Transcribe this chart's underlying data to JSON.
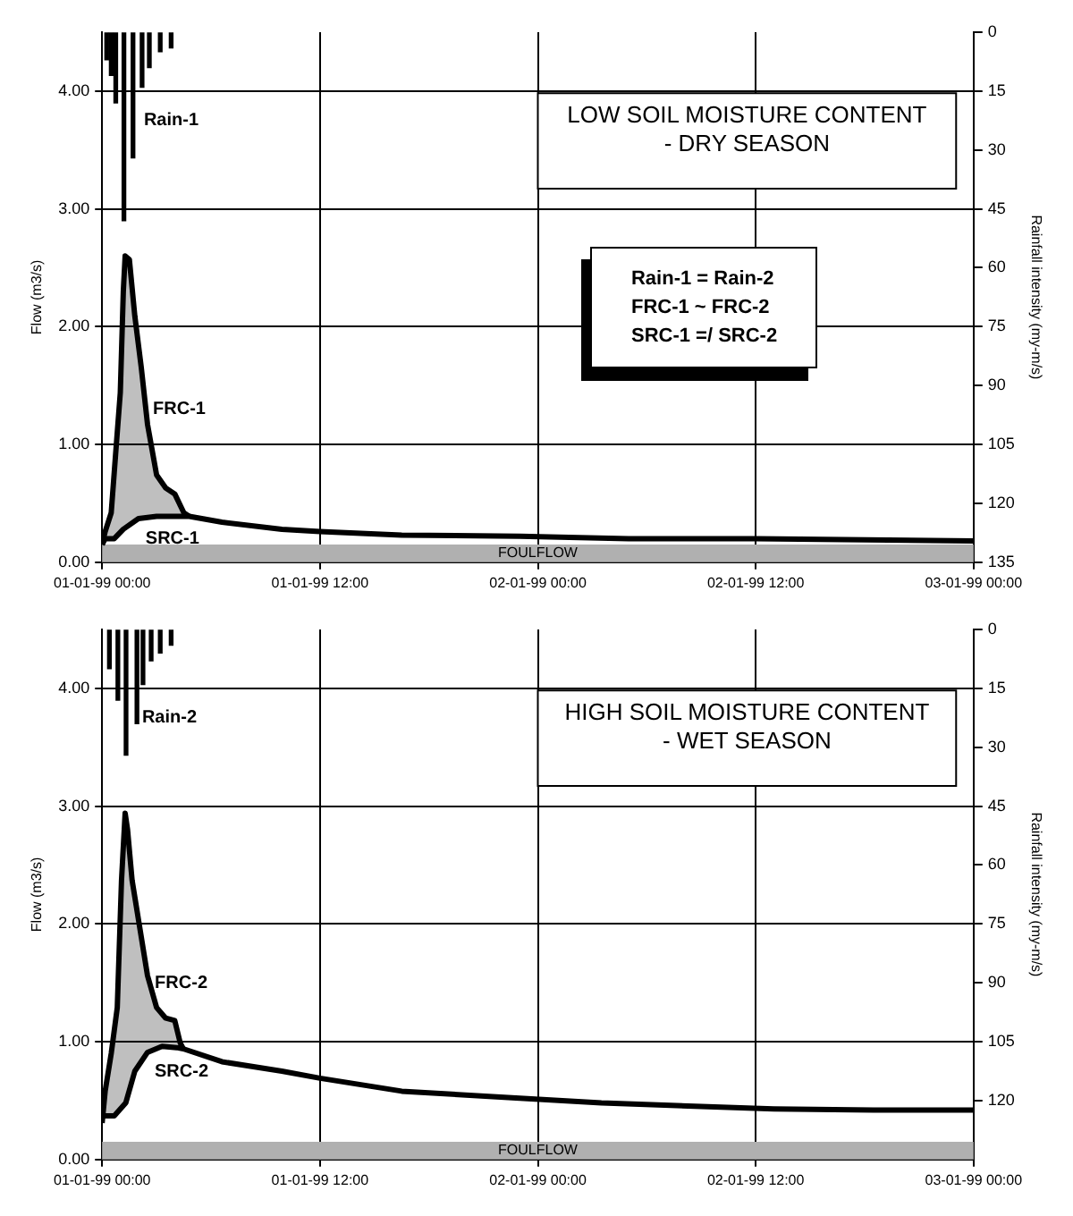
{
  "chart_data": [
    {
      "type": "line",
      "title": "LOW SOIL MOISTURE CONTENT",
      "subtitle": "- DRY SEASON",
      "ylabel": "Flow (m3/s)",
      "y2label": "Rainfall intensity (my-m/s)",
      "xlim": [
        "1999-01-01T00:00",
        "1999-01-03T00:00"
      ],
      "xticks": [
        {
          "value": "1999-01-01T00:00",
          "label": "01-01-99 00:00"
        },
        {
          "value": "1999-01-01T12:00",
          "label": "01-01-99 12:00"
        },
        {
          "value": "1999-01-02T00:00",
          "label": "02-01-99 00:00"
        },
        {
          "value": "1999-01-02T12:00",
          "label": "02-01-99 12:00"
        },
        {
          "value": "1999-01-03T00:00",
          "label": "03-01-99 00:00"
        }
      ],
      "ylim": [
        0,
        4.5
      ],
      "yticks": [
        {
          "value": 0,
          "label": "0.00"
        },
        {
          "value": 1,
          "label": "1.00"
        },
        {
          "value": 2,
          "label": "2.00"
        },
        {
          "value": 3,
          "label": "3.00"
        },
        {
          "value": 4,
          "label": "4.00"
        }
      ],
      "y2lim": [
        135,
        0
      ],
      "y2ticks": [
        0,
        15,
        30,
        45,
        60,
        75,
        90,
        105,
        120,
        135
      ],
      "grid": true,
      "legend": false,
      "marker": "none",
      "line_style": "solid",
      "bands": [
        {
          "axis": "y",
          "from": 0,
          "to": 0.15,
          "label": "FOULFLOW",
          "color": "#b0b0b0"
        }
      ],
      "annotations": [
        {
          "text": "Rain-1",
          "x": "1999-01-01T02:18",
          "y": 3.75
        },
        {
          "text": "FRC-1",
          "x": "1999-01-01T02:48",
          "y": 1.3
        },
        "Rain-1 = Rain-2",
        "FRC-1 ~ FRC-2",
        "SRC-1 =/ SRC-2"
      ],
      "series": [
        {
          "type": "bar",
          "axis": "y2",
          "color": "#000000",
          "x": [
            "1999-01-01T00:15",
            "1999-01-01T00:30",
            "1999-01-01T00:45",
            "1999-01-01T01:12",
            "1999-01-01T01:42",
            "1999-01-01T02:12",
            "1999-01-01T02:36",
            "1999-01-01T03:12",
            "1999-01-01T03:48"
          ],
          "values": [
            7,
            11,
            18,
            48,
            32,
            14,
            9,
            5,
            4
          ]
        },
        {
          "type": "area",
          "color": "#000000",
          "x": [
            "1999-01-01T00:00",
            "1999-01-01T00:10",
            "1999-01-01T00:30",
            "1999-01-01T00:44",
            "1999-01-01T01:00",
            "1999-01-01T01:10",
            "1999-01-01T01:16",
            "1999-01-01T01:30",
            "1999-01-01T01:48",
            "1999-01-01T02:09",
            "1999-01-01T02:30",
            "1999-01-01T03:00",
            "1999-01-01T03:30",
            "1999-01-01T04:00",
            "1999-01-01T04:30",
            "1999-01-01T04:48"
          ],
          "values": [
            0.15,
            0.26,
            0.42,
            0.9,
            1.44,
            2.3,
            2.6,
            2.57,
            2.09,
            1.66,
            1.17,
            0.74,
            0.63,
            0.58,
            0.42,
            0.39
          ]
        },
        {
          "type": "line",
          "name": "SRC-1",
          "color": "#000000",
          "x": [
            "1999-01-01T00:00",
            "1999-01-01T00:10",
            "1999-01-01T00:40",
            "1999-01-01T01:10",
            "1999-01-01T02:00",
            "1999-01-01T03:00",
            "1999-01-01T04:18",
            "1999-01-01T04:48",
            "1999-01-01T06:36",
            "1999-01-01T09:54",
            "1999-01-01T12:00",
            "1999-01-01T16:30",
            "1999-01-01T23:00",
            "1999-01-02T05:00",
            "1999-01-02T12:00",
            "1999-01-03T00:00"
          ],
          "values": [
            0.15,
            0.2,
            0.2,
            0.28,
            0.37,
            0.39,
            0.39,
            0.39,
            0.34,
            0.28,
            0.26,
            0.23,
            0.22,
            0.2,
            0.2,
            0.18
          ]
        }
      ]
    },
    {
      "type": "line",
      "title": "HIGH SOIL MOISTURE CONTENT",
      "subtitle": "- WET SEASON",
      "ylabel": "Flow (m3/s)",
      "y2label": "Rainfall intensity (my-m/s)",
      "xlim": [
        "1999-01-01T00:00",
        "1999-01-03T00:00"
      ],
      "xticks": [
        {
          "value": "1999-01-01T00:00",
          "label": "01-01-99 00:00"
        },
        {
          "value": "1999-01-01T12:00",
          "label": "01-01-99 12:00"
        },
        {
          "value": "1999-01-02T00:00",
          "label": "02-01-99 00:00"
        },
        {
          "value": "1999-01-02T12:00",
          "label": "02-01-99 12:00"
        },
        {
          "value": "1999-01-03T00:00",
          "label": "03-01-99 00:00"
        }
      ],
      "ylim": [
        0,
        4.5
      ],
      "yticks": [
        {
          "value": 0,
          "label": "0.00"
        },
        {
          "value": 1,
          "label": "1.00"
        },
        {
          "value": 2,
          "label": "2.00"
        },
        {
          "value": 3,
          "label": "3.00"
        },
        {
          "value": 4,
          "label": "4.00"
        }
      ],
      "y2lim": [
        135,
        0
      ],
      "y2ticks": [
        0,
        15,
        30,
        45,
        60,
        75,
        90,
        105,
        120
      ],
      "grid": true,
      "legend": false,
      "marker": "none",
      "line_style": "solid",
      "bands": [
        {
          "axis": "y",
          "from": 0,
          "to": 0.15,
          "label": "FOULFLOW",
          "color": "#b0b0b0"
        }
      ],
      "annotations": [
        {
          "text": "Rain-2",
          "x": "1999-01-01T02:12",
          "y": 3.75
        },
        {
          "text": "FRC-2",
          "x": "1999-01-01T02:54",
          "y": 1.5
        }
      ],
      "series": [
        {
          "type": "bar",
          "axis": "y2",
          "color": "#000000",
          "x": [
            "1999-01-01T00:24",
            "1999-01-01T00:52",
            "1999-01-01T01:19",
            "1999-01-01T01:55",
            "1999-01-01T02:15",
            "1999-01-01T02:42",
            "1999-01-01T03:12",
            "1999-01-01T03:48"
          ],
          "values": [
            10,
            18,
            32,
            24,
            14,
            8,
            6,
            4
          ]
        },
        {
          "type": "area",
          "color": "#000000",
          "x": [
            "1999-01-01T00:00",
            "1999-01-01T00:10",
            "1999-01-01T00:30",
            "1999-01-01T00:50",
            "1999-01-01T01:04",
            "1999-01-01T01:16",
            "1999-01-01T01:24",
            "1999-01-01T01:39",
            "1999-01-01T02:03",
            "1999-01-01T02:30",
            "1999-01-01T03:00",
            "1999-01-01T03:30",
            "1999-01-01T04:00",
            "1999-01-01T04:18",
            "1999-01-01T04:28"
          ],
          "values": [
            0.31,
            0.58,
            0.9,
            1.29,
            2.37,
            2.94,
            2.8,
            2.37,
            1.99,
            1.56,
            1.29,
            1.2,
            1.18,
            0.99,
            0.94
          ]
        },
        {
          "type": "line",
          "name": "SRC-2",
          "color": "#000000",
          "x": [
            "1999-01-01T00:00",
            "1999-01-01T00:40",
            "1999-01-01T01:18",
            "1999-01-01T01:48",
            "1999-01-01T02:30",
            "1999-01-01T03:18",
            "1999-01-01T04:06",
            "1999-01-01T04:28",
            "1999-01-01T06:36",
            "1999-01-01T09:54",
            "1999-01-01T12:00",
            "1999-01-01T16:30",
            "1999-01-01T23:00",
            "1999-01-02T03:30",
            "1999-01-02T09:00",
            "1999-01-02T13:00",
            "1999-01-02T18:30",
            "1999-01-03T00:00"
          ],
          "values": [
            0.37,
            0.37,
            0.48,
            0.75,
            0.91,
            0.96,
            0.95,
            0.94,
            0.83,
            0.75,
            0.69,
            0.58,
            0.52,
            0.48,
            0.45,
            0.43,
            0.42,
            0.42
          ]
        }
      ]
    }
  ]
}
